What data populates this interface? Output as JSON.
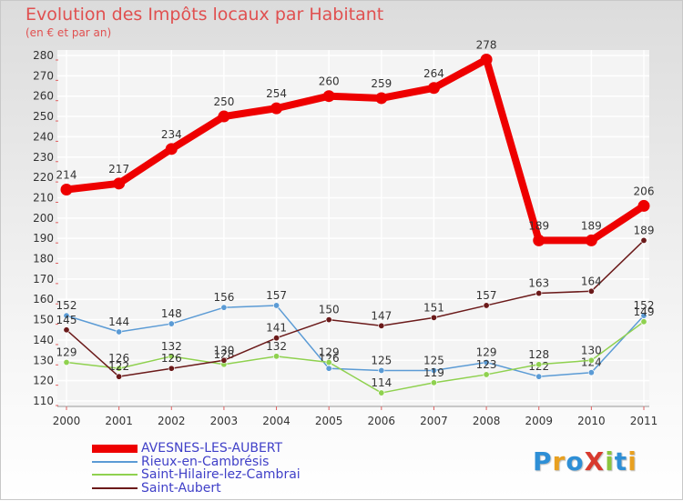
{
  "title": "Evolution des Impôts locaux par Habitant",
  "subtitle": "(en € et par an)",
  "logo_text": "ProXiti",
  "chart_data": {
    "type": "line",
    "title": "Evolution des Impôts locaux par Habitant",
    "subtitle": "(en € et par an)",
    "x": [
      "2000",
      "2001",
      "2002",
      "2003",
      "2004",
      "2005",
      "2006",
      "2007",
      "2008",
      "2009",
      "2010",
      "2011"
    ],
    "ylim": [
      110,
      280
    ],
    "yticks": [
      110,
      120,
      130,
      140,
      150,
      160,
      170,
      180,
      190,
      200,
      210,
      220,
      230,
      240,
      250,
      260,
      270,
      280
    ],
    "grid": true,
    "legend_position": "bottom-left",
    "series": [
      {
        "name": "AVESNES-LES-AUBERT",
        "color": "#ee0000",
        "values": [
          214,
          217,
          234,
          250,
          254,
          260,
          259,
          264,
          278,
          189,
          189,
          206
        ]
      },
      {
        "name": "Rieux-en-Cambrésis",
        "color": "#5b9bd5",
        "values": [
          152,
          144,
          148,
          156,
          157,
          126,
          125,
          125,
          129,
          122,
          124,
          152
        ]
      },
      {
        "name": "Saint-Hilaire-lez-Cambrai",
        "color": "#8fd14f",
        "values": [
          129,
          126,
          132,
          128,
          132,
          129,
          114,
          119,
          123,
          128,
          130,
          149
        ]
      },
      {
        "name": "Saint-Aubert",
        "color": "#6b1a1a",
        "values": [
          145,
          122,
          126,
          130,
          141,
          150,
          147,
          151,
          157,
          163,
          164,
          189
        ]
      }
    ]
  }
}
